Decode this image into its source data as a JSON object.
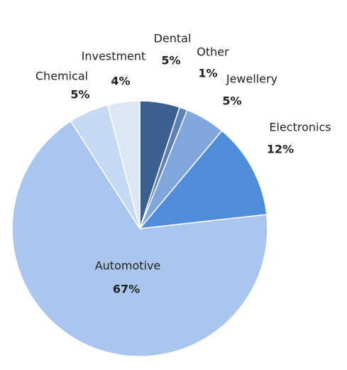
{
  "chart_data": {
    "type": "pie",
    "categories": [
      "Dental",
      "Other",
      "Jewellery",
      "Electronics",
      "Automotive",
      "Chemical",
      "Investment"
    ],
    "values": [
      5,
      1,
      5,
      12,
      67,
      5,
      4
    ],
    "value_labels": [
      "5%",
      "1%",
      "5%",
      "12%",
      "67%",
      "5%",
      "4%"
    ],
    "colors": [
      "#3b5f8e",
      "#5d80b6",
      "#80a7dc",
      "#4f8ddb",
      "#a9c6ee",
      "#c6d9f2",
      "#dce7f6"
    ]
  }
}
